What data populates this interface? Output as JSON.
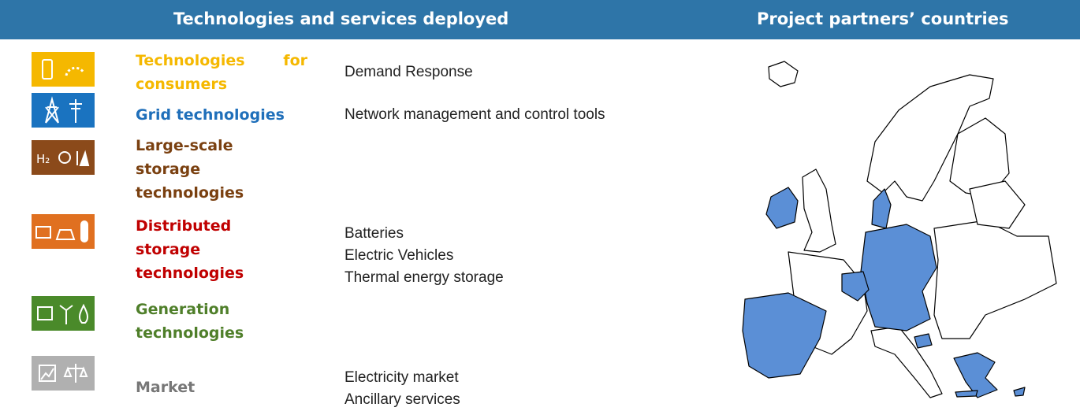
{
  "header": {
    "left_title": "Technologies and services deployed",
    "right_title": "Project partners’ countries"
  },
  "rows": [
    {
      "label": "Technologies for consumers",
      "services": [
        "Demand Response"
      ]
    },
    {
      "label": "Grid technologies",
      "services": [
        "Network management and control tools"
      ]
    },
    {
      "label": "Large-scale storage technologies",
      "icon_label": "H₂",
      "services": []
    },
    {
      "label": "Distributed storage technologies",
      "services": [
        "Batteries",
        "Electric Vehicles",
        "Thermal energy storage"
      ]
    },
    {
      "label": "Generation technologies",
      "services": []
    },
    {
      "label": "Market",
      "services": [
        "Electricity market",
        "Ancillary services"
      ]
    }
  ]
}
